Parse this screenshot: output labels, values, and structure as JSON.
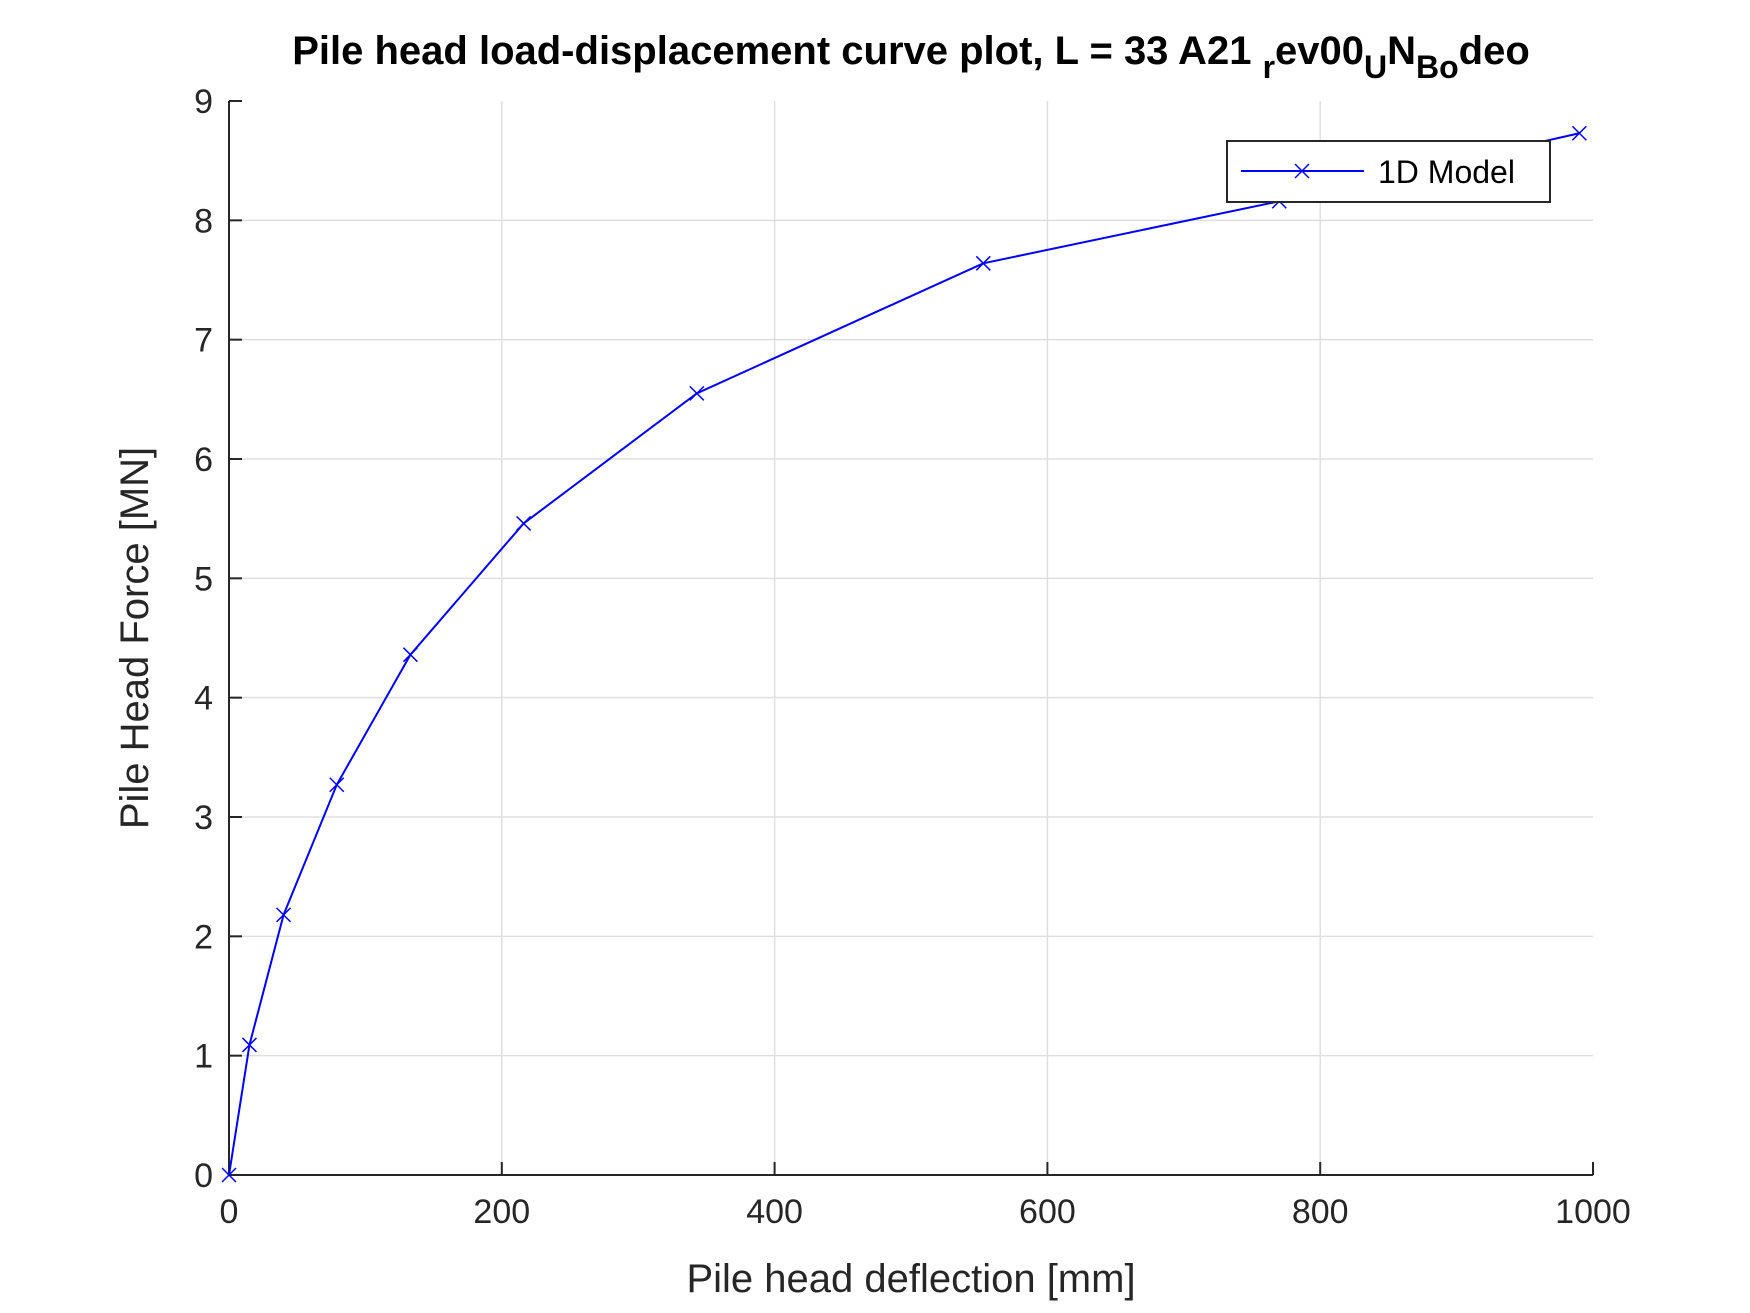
{
  "chart_data": {
    "type": "line",
    "title": {
      "main": "Pile head load-displacement curve plot, L = 33 A21",
      "parts": [
        {
          "text": "r",
          "sub": true
        },
        {
          "text": "ev00",
          "sub": false
        },
        {
          "text": "U",
          "sub": true
        },
        {
          "text": "N",
          "sub": false
        },
        {
          "text": "Bo",
          "sub": true
        },
        {
          "text": "deo",
          "sub": false
        }
      ]
    },
    "xlabel": "Pile head deflection [mm]",
    "ylabel": "Pile Head Force [MN]",
    "xlim": [
      0,
      1000
    ],
    "ylim": [
      0,
      9
    ],
    "xticks": [
      0,
      200,
      400,
      600,
      800,
      1000
    ],
    "yticks": [
      0,
      1,
      2,
      3,
      4,
      5,
      6,
      7,
      8,
      9
    ],
    "grid": true,
    "legend_position": "top-right",
    "series": [
      {
        "name": "1D Model",
        "color": "#0000ff",
        "marker": "x",
        "x": [
          0,
          15,
          40,
          79,
          133,
          216,
          343,
          553,
          770,
          990
        ],
        "y": [
          0,
          1.09,
          2.18,
          3.27,
          4.36,
          5.46,
          6.55,
          7.64,
          8.16,
          8.73
        ]
      }
    ]
  }
}
